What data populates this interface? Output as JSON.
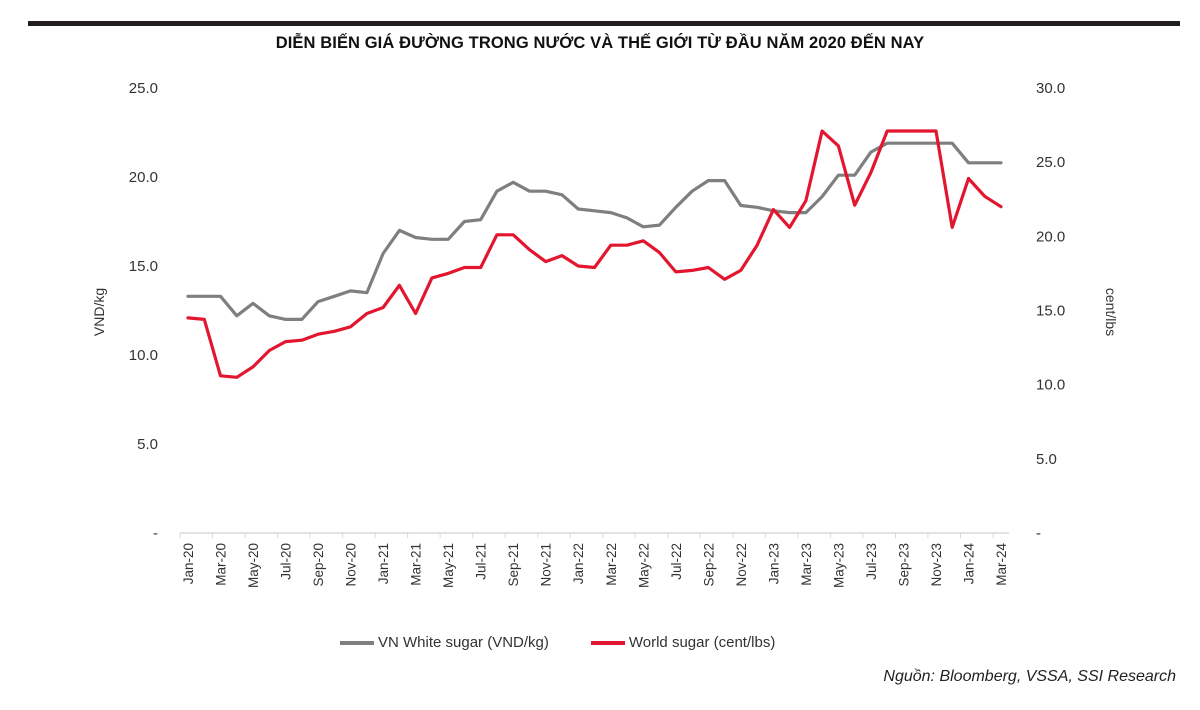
{
  "title": "DIỄN BIẾN GIÁ ĐƯỜNG TRONG NƯỚC VÀ THẾ GIỚI TỪ ĐẦU NĂM 2020 ĐẾN NAY",
  "source": "Nguồn: Bloomberg, VSSA, SSI Research",
  "colors": {
    "vn": "#7f7f7f",
    "world": "#e3162f",
    "axis": "#d9d9d9",
    "bar": "#231f20"
  },
  "chart_data": {
    "type": "line",
    "title": "DIỄN BIẾN GIÁ ĐƯỜNG TRONG NƯỚC VÀ THẾ GIỚI TỪ ĐẦU NĂM 2020 ĐẾN NAY",
    "xlabel": "",
    "ylabel_left": "VND/kg",
    "ylabel_right": "cent/lbs",
    "ylim_left": [
      0,
      25
    ],
    "ylim_right": [
      0,
      30
    ],
    "yticks_left": [
      "-",
      "5.0",
      "10.0",
      "15.0",
      "20.0",
      "25.0"
    ],
    "yticks_right": [
      "-",
      "5.0",
      "10.0",
      "15.0",
      "20.0",
      "25.0",
      "30.0"
    ],
    "grid": false,
    "legend_position": "bottom",
    "x": [
      "Jan-20",
      "Feb-20",
      "Mar-20",
      "Apr-20",
      "May-20",
      "Jun-20",
      "Jul-20",
      "Aug-20",
      "Sep-20",
      "Oct-20",
      "Nov-20",
      "Dec-20",
      "Jan-21",
      "Feb-21",
      "Mar-21",
      "Apr-21",
      "May-21",
      "Jun-21",
      "Jul-21",
      "Aug-21",
      "Sep-21",
      "Oct-21",
      "Nov-21",
      "Dec-21",
      "Jan-22",
      "Feb-22",
      "Mar-22",
      "Apr-22",
      "May-22",
      "Jun-22",
      "Jul-22",
      "Aug-22",
      "Sep-22",
      "Oct-22",
      "Nov-22",
      "Dec-22",
      "Jan-23",
      "Feb-23",
      "Mar-23",
      "Apr-23",
      "May-23",
      "Jun-23",
      "Jul-23",
      "Aug-23",
      "Sep-23",
      "Oct-23",
      "Nov-23",
      "Dec-23",
      "Jan-24",
      "Feb-24",
      "Mar-24"
    ],
    "xtick_labels": [
      "Jan-20",
      "Mar-20",
      "May-20",
      "Jul-20",
      "Sep-20",
      "Nov-20",
      "Jan-21",
      "Mar-21",
      "May-21",
      "Jul-21",
      "Sep-21",
      "Nov-21",
      "Jan-22",
      "Mar-22",
      "May-22",
      "Jul-22",
      "Sep-22",
      "Nov-22",
      "Jan-23",
      "Mar-23",
      "May-23",
      "Jul-23",
      "Sep-23",
      "Nov-23",
      "Jan-24",
      "Mar-24"
    ],
    "series": [
      {
        "name": "VN White sugar (VND/kg)",
        "axis": "left",
        "values": [
          13.3,
          13.3,
          13.3,
          12.2,
          12.9,
          12.2,
          12.0,
          12.0,
          13.0,
          13.3,
          13.6,
          13.5,
          15.7,
          17.0,
          16.6,
          16.5,
          16.5,
          17.5,
          17.6,
          19.2,
          19.7,
          19.2,
          19.2,
          19.0,
          18.2,
          18.1,
          18.0,
          17.7,
          17.2,
          17.3,
          18.3,
          19.2,
          19.8,
          19.8,
          18.4,
          18.3,
          18.1,
          18.0,
          18.0,
          18.9,
          20.1,
          20.1,
          21.4,
          21.9,
          21.9,
          21.9,
          21.9,
          21.9,
          20.8,
          20.8,
          20.8
        ]
      },
      {
        "name": "World sugar (cent/lbs)",
        "axis": "right",
        "values": [
          14.5,
          14.4,
          10.6,
          10.5,
          11.2,
          12.3,
          12.9,
          13.0,
          13.4,
          13.6,
          13.9,
          14.8,
          15.2,
          16.7,
          14.8,
          17.2,
          17.5,
          17.9,
          17.9,
          20.1,
          20.1,
          19.1,
          18.3,
          18.7,
          18.0,
          17.9,
          19.4,
          19.4,
          19.7,
          18.9,
          17.6,
          17.7,
          17.9,
          17.1,
          17.7,
          19.4,
          21.8,
          20.6,
          22.4,
          27.1,
          26.1,
          22.1,
          24.3,
          27.1,
          27.1,
          27.1,
          27.1,
          20.6,
          23.9,
          22.7,
          22.0
        ]
      }
    ]
  }
}
